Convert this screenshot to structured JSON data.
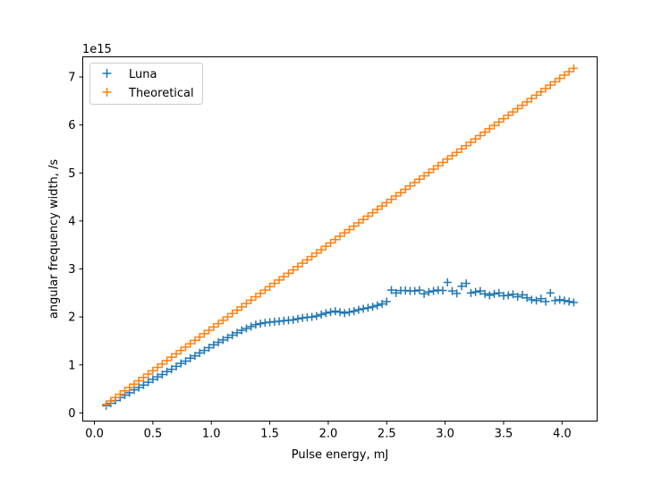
{
  "chart_data": {
    "type": "scatter",
    "xlabel": "Pulse energy, mJ",
    "ylabel": "angular frequency width, /s",
    "y_offset_label": "1e15",
    "xlim": [
      -0.1,
      4.3
    ],
    "ylim": [
      -0.17,
      7.42
    ],
    "x_ticks": [
      0.0,
      0.5,
      1.0,
      1.5,
      2.0,
      2.5,
      3.0,
      3.5,
      4.0
    ],
    "x_tick_labels": [
      "0.0",
      "0.5",
      "1.0",
      "1.5",
      "2.0",
      "2.5",
      "3.0",
      "3.5",
      "4.0"
    ],
    "y_ticks": [
      0,
      1,
      2,
      3,
      4,
      5,
      6,
      7
    ],
    "y_tick_labels": [
      "0",
      "1",
      "2",
      "3",
      "4",
      "5",
      "6",
      "7"
    ],
    "grid": false,
    "legend_position": "upper-left",
    "marker": "+",
    "series": [
      {
        "name": "Luna",
        "color": "#1f77b4",
        "x": [
          0.1,
          0.14,
          0.18,
          0.22,
          0.26,
          0.3,
          0.34,
          0.38,
          0.42,
          0.46,
          0.5,
          0.54,
          0.58,
          0.62,
          0.66,
          0.7,
          0.74,
          0.78,
          0.82,
          0.86,
          0.9,
          0.94,
          0.98,
          1.02,
          1.06,
          1.1,
          1.14,
          1.18,
          1.22,
          1.26,
          1.3,
          1.34,
          1.38,
          1.42,
          1.46,
          1.5,
          1.54,
          1.58,
          1.62,
          1.66,
          1.7,
          1.74,
          1.78,
          1.82,
          1.86,
          1.9,
          1.94,
          1.98,
          2.02,
          2.06,
          2.1,
          2.14,
          2.18,
          2.22,
          2.26,
          2.3,
          2.34,
          2.38,
          2.42,
          2.46,
          2.5,
          2.54,
          2.58,
          2.62,
          2.66,
          2.7,
          2.74,
          2.78,
          2.82,
          2.86,
          2.9,
          2.94,
          2.98,
          3.02,
          3.06,
          3.1,
          3.14,
          3.18,
          3.22,
          3.26,
          3.3,
          3.34,
          3.38,
          3.42,
          3.46,
          3.5,
          3.54,
          3.58,
          3.62,
          3.66,
          3.7,
          3.74,
          3.78,
          3.82,
          3.86,
          3.9,
          3.94,
          3.98,
          4.02,
          4.06,
          4.1
        ],
        "y": [
          0.15,
          0.2,
          0.26,
          0.32,
          0.37,
          0.42,
          0.48,
          0.53,
          0.58,
          0.64,
          0.7,
          0.75,
          0.8,
          0.86,
          0.91,
          0.97,
          1.03,
          1.08,
          1.14,
          1.19,
          1.25,
          1.3,
          1.36,
          1.42,
          1.47,
          1.52,
          1.57,
          1.62,
          1.67,
          1.72,
          1.76,
          1.8,
          1.84,
          1.86,
          1.88,
          1.89,
          1.9,
          1.91,
          1.92,
          1.93,
          1.94,
          1.96,
          1.98,
          1.99,
          2.0,
          2.02,
          2.05,
          2.08,
          2.1,
          2.12,
          2.1,
          2.08,
          2.1,
          2.12,
          2.15,
          2.17,
          2.19,
          2.21,
          2.24,
          2.27,
          2.32,
          2.56,
          2.5,
          2.55,
          2.55,
          2.54,
          2.54,
          2.56,
          2.48,
          2.52,
          2.54,
          2.56,
          2.55,
          2.72,
          2.54,
          2.49,
          2.64,
          2.7,
          2.5,
          2.52,
          2.54,
          2.48,
          2.45,
          2.48,
          2.5,
          2.44,
          2.45,
          2.47,
          2.42,
          2.46,
          2.4,
          2.36,
          2.34,
          2.38,
          2.32,
          2.5,
          2.34,
          2.36,
          2.34,
          2.32,
          2.3
        ]
      },
      {
        "name": "Theoretical",
        "color": "#ff7f0e",
        "x": [
          0.1,
          0.14,
          0.18,
          0.22,
          0.26,
          0.3,
          0.34,
          0.38,
          0.42,
          0.46,
          0.5,
          0.54,
          0.58,
          0.62,
          0.66,
          0.7,
          0.74,
          0.78,
          0.82,
          0.86,
          0.9,
          0.94,
          0.98,
          1.02,
          1.06,
          1.1,
          1.14,
          1.18,
          1.22,
          1.26,
          1.3,
          1.34,
          1.38,
          1.42,
          1.46,
          1.5,
          1.54,
          1.58,
          1.62,
          1.66,
          1.7,
          1.74,
          1.78,
          1.82,
          1.86,
          1.9,
          1.94,
          1.98,
          2.02,
          2.06,
          2.1,
          2.14,
          2.18,
          2.22,
          2.26,
          2.3,
          2.34,
          2.38,
          2.42,
          2.46,
          2.5,
          2.54,
          2.58,
          2.62,
          2.66,
          2.7,
          2.74,
          2.78,
          2.82,
          2.86,
          2.9,
          2.94,
          2.98,
          3.02,
          3.06,
          3.1,
          3.14,
          3.18,
          3.22,
          3.26,
          3.3,
          3.34,
          3.38,
          3.42,
          3.46,
          3.5,
          3.54,
          3.58,
          3.62,
          3.66,
          3.7,
          3.74,
          3.78,
          3.82,
          3.86,
          3.9,
          3.94,
          3.98,
          4.02,
          4.06,
          4.1
        ],
        "y": [
          0.18,
          0.25,
          0.32,
          0.39,
          0.46,
          0.53,
          0.6,
          0.67,
          0.74,
          0.81,
          0.88,
          0.95,
          1.02,
          1.09,
          1.16,
          1.23,
          1.3,
          1.37,
          1.44,
          1.51,
          1.58,
          1.65,
          1.72,
          1.79,
          1.86,
          1.93,
          2.0,
          2.07,
          2.14,
          2.21,
          2.28,
          2.35,
          2.42,
          2.49,
          2.56,
          2.63,
          2.7,
          2.77,
          2.84,
          2.91,
          2.98,
          3.05,
          3.12,
          3.19,
          3.26,
          3.33,
          3.4,
          3.47,
          3.54,
          3.61,
          3.68,
          3.75,
          3.82,
          3.89,
          3.96,
          4.03,
          4.1,
          4.17,
          4.24,
          4.31,
          4.38,
          4.45,
          4.52,
          4.59,
          4.66,
          4.73,
          4.8,
          4.87,
          4.94,
          5.01,
          5.08,
          5.15,
          5.22,
          5.29,
          5.36,
          5.43,
          5.5,
          5.57,
          5.64,
          5.71,
          5.78,
          5.85,
          5.92,
          5.99,
          6.06,
          6.13,
          6.2,
          6.27,
          6.34,
          6.41,
          6.48,
          6.55,
          6.62,
          6.69,
          6.76,
          6.83,
          6.9,
          6.97,
          7.04,
          7.11,
          7.18
        ]
      }
    ]
  }
}
